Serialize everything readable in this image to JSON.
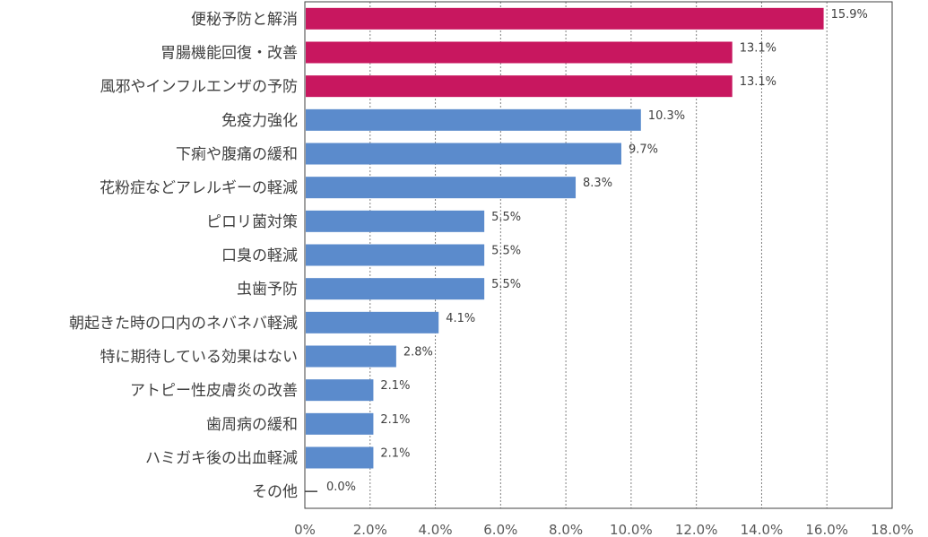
{
  "chart_data": {
    "type": "bar",
    "orientation": "horizontal",
    "categories": [
      "便秘予防と解消",
      "胃腸機能回復・改善",
      "風邪やインフルエンザの予防",
      "免疫力強化",
      "下痢や腹痛の緩和",
      "花粉症などアレルギーの軽減",
      "ピロリ菌対策",
      "口臭の軽減",
      "虫歯予防",
      "朝起きた時の口内のネバネバ軽減",
      "特に期待している効果はない",
      "アトピー性皮膚炎の改善",
      "歯周病の緩和",
      "ハミガキ後の出血軽減",
      "その他"
    ],
    "values": [
      15.9,
      13.1,
      13.1,
      10.3,
      9.7,
      8.3,
      5.5,
      5.5,
      5.5,
      4.1,
      2.8,
      2.1,
      2.1,
      2.1,
      0.0
    ],
    "value_labels": [
      "15.9%",
      "13.1%",
      "13.1%",
      "10.3%",
      "9.7%",
      "8.3%",
      "5.5%",
      "5.5%",
      "5.5%",
      "4.1%",
      "2.8%",
      "2.1%",
      "2.1%",
      "2.1%",
      "0.0%"
    ],
    "highlight_count": 3,
    "colors": {
      "highlight": "#c8175f",
      "normal": "#5b8bcc",
      "grid": "#808080",
      "axis": "#404040"
    },
    "xlim": [
      0,
      18
    ],
    "xticks": [
      0,
      2,
      4,
      6,
      8,
      10,
      12,
      14,
      16,
      18
    ],
    "xtick_labels": [
      "0%",
      "2.0%",
      "4.0%",
      "6.0%",
      "8.0%",
      "10.0%",
      "12.0%",
      "14.0%",
      "16.0%",
      "18.0%"
    ],
    "grid": "vertical-dotted",
    "title": "",
    "xlabel": "",
    "ylabel": ""
  }
}
